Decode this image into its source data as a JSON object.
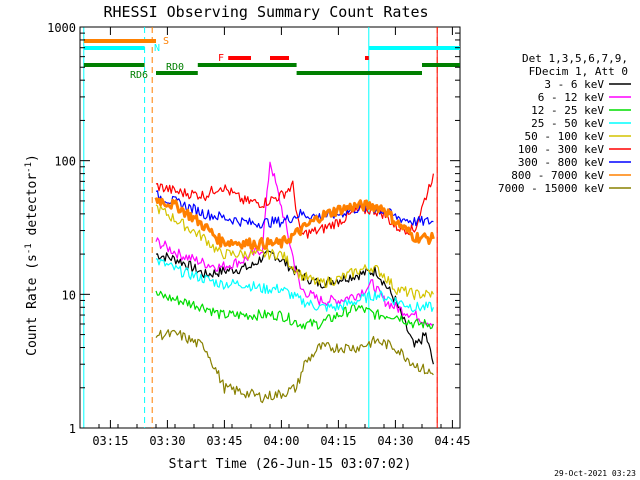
{
  "chart_data": {
    "type": "line",
    "title": "RHESSI Observing Summary Count Rates",
    "xlabel": "Start Time (26-Jun-15 03:07:02)",
    "ylabel_prefix": "Count Rate (s",
    "ylabel_sup1": "-1",
    "ylabel_mid": " detector",
    "ylabel_sup2": "-1",
    "ylabel_suffix": ")",
    "ylabel": "Count Rate (s-1 detector-1)",
    "yscale": "log",
    "ylim": [
      1,
      1000
    ],
    "xlim": [
      "03:07",
      "04:47"
    ],
    "x_ticks": [
      "03:15",
      "03:30",
      "03:45",
      "04:00",
      "04:15",
      "04:30",
      "04:45"
    ],
    "y_ticks": [
      "1",
      "10",
      "100",
      "1000"
    ],
    "footer_date": "29-Oct-2021 03:23",
    "legend_header": [
      "Det 1,3,5,6,7,9,",
      "FDecim 1, Att 0"
    ],
    "legend_position": "right",
    "series": [
      {
        "name": "3 - 6 keV",
        "color": "#000000",
        "x": [
          "03:27",
          "03:33",
          "03:40",
          "03:45",
          "03:52",
          "03:55",
          "03:58",
          "04:05",
          "04:10",
          "04:15",
          "04:20",
          "04:25",
          "04:30",
          "04:35",
          "04:38",
          "04:40"
        ],
        "values": [
          20,
          18,
          14,
          15,
          16,
          19,
          20,
          14,
          12,
          13,
          14,
          15,
          9,
          4,
          5,
          3
        ]
      },
      {
        "name": "6 - 12 keV",
        "color": "#ff00ff",
        "x": [
          "03:27",
          "03:33",
          "03:40",
          "03:44",
          "03:50",
          "03:55",
          "03:57",
          "04:00",
          "04:05",
          "04:10",
          "04:15",
          "04:20",
          "04:24",
          "04:27",
          "04:30",
          "04:35",
          "04:40"
        ],
        "values": [
          25,
          20,
          17,
          16,
          18,
          22,
          100,
          45,
          11,
          9,
          9,
          10,
          12,
          9,
          8,
          7,
          6
        ]
      },
      {
        "name": "12 - 25 keV",
        "color": "#00dd00",
        "x": [
          "03:27",
          "03:33",
          "03:40",
          "03:44",
          "03:52",
          "04:00",
          "04:05",
          "04:10",
          "04:15",
          "04:20",
          "04:25",
          "04:30",
          "04:35",
          "04:40"
        ],
        "values": [
          10,
          9,
          8,
          7,
          7,
          7,
          6,
          6,
          7,
          8,
          7,
          7,
          6,
          6
        ]
      },
      {
        "name": "25 - 50 keV",
        "color": "#00ffff",
        "x": [
          "03:27",
          "03:33",
          "03:40",
          "03:44",
          "03:50",
          "03:55",
          "04:00",
          "04:05",
          "04:10",
          "04:15",
          "04:20",
          "04:25",
          "04:30",
          "04:35",
          "04:40"
        ],
        "values": [
          18,
          15,
          13,
          12,
          12,
          11,
          11,
          9,
          8,
          8,
          9,
          10,
          9,
          8,
          8
        ]
      },
      {
        "name": "50 - 100 keV",
        "color": "#d4c400",
        "x": [
          "03:27",
          "03:33",
          "03:40",
          "03:44",
          "03:52",
          "04:00",
          "04:05",
          "04:10",
          "04:15",
          "04:20",
          "04:24",
          "04:27",
          "04:30",
          "04:35",
          "04:40"
        ],
        "values": [
          45,
          35,
          26,
          20,
          20,
          20,
          14,
          12,
          13,
          15,
          16,
          14,
          11,
          10,
          10
        ]
      },
      {
        "name": "100 - 300 keV",
        "color": "#ff0000",
        "x": [
          "03:27",
          "03:33",
          "03:40",
          "03:44",
          "03:50",
          "03:55",
          "04:00",
          "04:03",
          "04:05",
          "04:10",
          "04:15",
          "04:20",
          "04:24",
          "04:27",
          "04:30",
          "04:35",
          "04:40"
        ],
        "values": [
          65,
          58,
          55,
          65,
          50,
          48,
          55,
          65,
          28,
          30,
          35,
          42,
          43,
          40,
          32,
          30,
          80
        ]
      },
      {
        "name": "300 - 800 keV",
        "color": "#0000ff",
        "x": [
          "03:27",
          "03:33",
          "03:40",
          "03:44",
          "03:52",
          "04:00",
          "04:05",
          "04:10",
          "04:15",
          "04:20",
          "04:24",
          "04:27",
          "04:30",
          "04:35",
          "04:40"
        ],
        "values": [
          55,
          48,
          40,
          38,
          34,
          35,
          40,
          38,
          40,
          44,
          44,
          42,
          38,
          35,
          35
        ]
      },
      {
        "name": "800 - 7000 keV",
        "color": "#ff8000",
        "x": [
          "03:27",
          "03:33",
          "03:40",
          "03:44",
          "03:52",
          "04:00",
          "04:05",
          "04:10",
          "04:15",
          "04:20",
          "04:24",
          "04:27",
          "04:30",
          "04:35",
          "04:40"
        ],
        "values": [
          52,
          45,
          32,
          25,
          24,
          24,
          30,
          38,
          43,
          46,
          46,
          44,
          35,
          27,
          26
        ]
      },
      {
        "name": "7000 - 15000 keV",
        "color": "#888000",
        "x": [
          "03:27",
          "03:33",
          "03:40",
          "03:45",
          "03:55",
          "04:00",
          "04:04",
          "04:06",
          "04:10",
          "04:15",
          "04:20",
          "04:25",
          "04:30",
          "04:35",
          "04:40"
        ],
        "values": [
          5,
          5,
          4,
          2,
          1.7,
          1.8,
          2,
          3,
          4,
          4,
          4,
          4.5,
          4,
          3,
          2.5
        ]
      }
    ],
    "flags": [
      {
        "name": "S",
        "color": "#ff8000",
        "segments": [
          [
            "03:08",
            "03:27"
          ]
        ]
      },
      {
        "name": "N",
        "color": "#00ffff",
        "segments": [
          [
            "03:08",
            "03:24"
          ],
          [
            "04:23",
            "04:47"
          ]
        ]
      },
      {
        "name": "F",
        "color": "#ff0000",
        "segments": [
          [
            "03:46",
            "03:52"
          ],
          [
            "03:57",
            "04:02"
          ],
          [
            "04:22",
            "04:23"
          ]
        ]
      },
      {
        "name": "RD0",
        "color": "#007f00",
        "segments": [
          [
            "03:08",
            "03:24"
          ],
          [
            "03:38",
            "04:04"
          ],
          [
            "04:37",
            "04:47"
          ]
        ]
      },
      {
        "name": "RD6",
        "color": "#007f00",
        "segments": [
          [
            "03:27",
            "03:38"
          ],
          [
            "04:04",
            "04:37"
          ]
        ]
      }
    ],
    "vlines": [
      {
        "x": "03:08",
        "color": "#00ffff",
        "style": "solid"
      },
      {
        "x": "03:24",
        "color": "#00ffff",
        "style": "dashed"
      },
      {
        "x": "03:26",
        "color": "#ff8000",
        "style": "dashed"
      },
      {
        "x": "04:23",
        "color": "#00ffff",
        "style": "solid"
      },
      {
        "x": "04:41",
        "color": "#ff8000",
        "style": "dashed"
      },
      {
        "x": "04:41",
        "color": "#ff0000",
        "style": "solid"
      }
    ]
  }
}
